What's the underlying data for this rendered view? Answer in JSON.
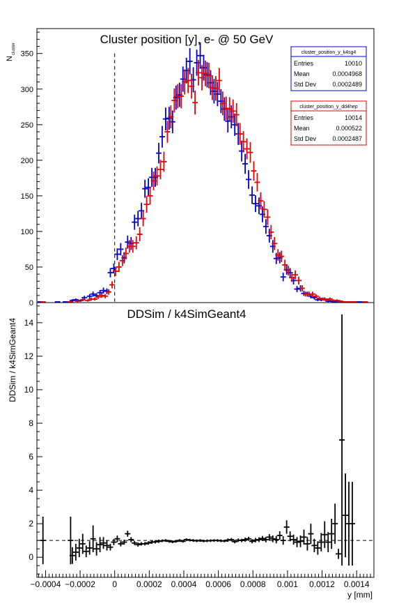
{
  "chart_data": [
    {
      "type": "scatter",
      "title": "Cluster position [y],  e- @ 50 GeV",
      "ylabel": "N",
      "ylabel_sub": "cluster",
      "xlim": [
        -0.00045,
        0.0015
      ],
      "ylim": [
        0,
        385
      ],
      "yticks": [
        0,
        50,
        100,
        150,
        200,
        250,
        300,
        350
      ],
      "reference_line_x": 0,
      "colors": {
        "k4sg4": "#0000cc",
        "dd4hep": "#e60000"
      },
      "stats_boxes": [
        {
          "name": "cluster_position_y_k4sg4",
          "rows": [
            {
              "label": "Entries",
              "value": "10010"
            },
            {
              "label": "Mean",
              "value": "0.0004968"
            },
            {
              "label": "Std Dev",
              "value": "0.0002489"
            }
          ]
        },
        {
          "name": "cluster_position_y_dd4hep",
          "rows": [
            {
              "label": "Entries",
              "value": "10014"
            },
            {
              "label": "Mean",
              "value": "0.000522"
            },
            {
              "label": "Std Dev",
              "value": "0.0002487"
            }
          ]
        }
      ],
      "series": [
        {
          "key": "k4sg4",
          "x": [
            -0.00043,
            -0.00033,
            -0.000285,
            -0.000245,
            -0.000225,
            -0.000195,
            -0.000175,
            -0.000145,
            -0.000125,
            -0.000105,
            -8.5e-05,
            -6.5e-05,
            -4.5e-05,
            -2.5e-05,
            -5e-06,
            1.5e-05,
            3.5e-05,
            5.5e-05,
            7.5e-05,
            9.5e-05,
            0.000115,
            0.000135,
            0.000155,
            0.000175,
            0.000195,
            0.000215,
            0.000235,
            0.000255,
            0.000275,
            0.000295,
            0.000315,
            0.000335,
            0.000355,
            0.000375,
            0.000395,
            0.000415,
            0.000435,
            0.000455,
            0.000475,
            0.000495,
            0.000515,
            0.000535,
            0.000555,
            0.000575,
            0.000595,
            0.000615,
            0.000635,
            0.000655,
            0.000675,
            0.000695,
            0.000715,
            0.000735,
            0.000755,
            0.000775,
            0.000795,
            0.000815,
            0.000835,
            0.000855,
            0.000875,
            0.000895,
            0.000915,
            0.000935,
            0.000955,
            0.000975,
            0.000995,
            0.001015,
            0.001035,
            0.001055,
            0.001075,
            0.001095,
            0.001115,
            0.001135,
            0.001155,
            0.001175,
            0.001195,
            0.001215,
            0.001235,
            0.001255,
            0.001275,
            0.001295,
            0.001315,
            0.001335,
            0.001355,
            0.001375,
            0.001395,
            0.00142
          ],
          "y": [
            1,
            1,
            1,
            3,
            4,
            3,
            7,
            9,
            12,
            10,
            14,
            17,
            16,
            42,
            48,
            68,
            75,
            63,
            85,
            83,
            113,
            118,
            129,
            160,
            162,
            176,
            176,
            210,
            233,
            258,
            259,
            254,
            288,
            292,
            314,
            326,
            339,
            313,
            337,
            347,
            330,
            320,
            309,
            297,
            293,
            283,
            272,
            255,
            261,
            250,
            237,
            213,
            195,
            173,
            151,
            139,
            136,
            124,
            107,
            94,
            79,
            62,
            63,
            36,
            46,
            42,
            31,
            19,
            20,
            13,
            12,
            9,
            7,
            4,
            4,
            5,
            2,
            2,
            1,
            2,
            1,
            1,
            1,
            1,
            1,
            1
          ]
        },
        {
          "key": "dd4hep",
          "x": [
            -0.000415,
            -0.000255,
            -0.000215,
            -0.000185,
            -0.000155,
            -0.000135,
            -0.000115,
            -9.5e-05,
            -7.5e-05,
            -5.5e-05,
            -3.5e-05,
            -1.5e-05,
            5e-06,
            2.5e-05,
            4.5e-05,
            6.5e-05,
            8.5e-05,
            0.000105,
            0.000125,
            0.000145,
            0.000165,
            0.000185,
            0.000205,
            0.000225,
            0.000245,
            0.000265,
            0.000285,
            0.000305,
            0.000325,
            0.000345,
            0.000365,
            0.000385,
            0.000405,
            0.000425,
            0.000445,
            0.000465,
            0.000485,
            0.000505,
            0.000525,
            0.000545,
            0.000565,
            0.000585,
            0.000605,
            0.000625,
            0.000645,
            0.000665,
            0.000685,
            0.000705,
            0.000725,
            0.000745,
            0.000765,
            0.000785,
            0.000805,
            0.000825,
            0.000845,
            0.000865,
            0.000885,
            0.000905,
            0.000925,
            0.000945,
            0.000965,
            0.000985,
            0.001005,
            0.001025,
            0.001045,
            0.001065,
            0.001085,
            0.001105,
            0.001125,
            0.001145,
            0.001165,
            0.001185,
            0.001205,
            0.001225,
            0.001245,
            0.001265,
            0.001285,
            0.001305,
            0.001325,
            0.001345,
            0.001365,
            0.001385,
            0.00145
          ],
          "y": [
            1,
            1,
            2,
            4,
            3,
            5,
            5,
            8,
            10,
            9,
            15,
            25,
            44,
            50,
            59,
            69,
            79,
            79,
            84,
            96,
            118,
            138,
            150,
            171,
            178,
            187,
            198,
            240,
            261,
            284,
            290,
            290,
            310,
            312,
            304,
            281,
            323,
            316,
            322,
            319,
            302,
            301,
            312,
            280,
            273,
            272,
            269,
            264,
            237,
            226,
            216,
            211,
            185,
            169,
            143,
            131,
            120,
            99,
            83,
            67,
            65,
            53,
            45,
            35,
            39,
            31,
            20,
            12,
            12,
            12,
            9,
            6,
            5,
            4,
            5,
            3,
            3,
            2,
            1,
            1,
            1,
            1,
            1
          ]
        }
      ]
    },
    {
      "type": "scatter",
      "title": "DDSim / k4SimGeant4",
      "xlabel": "y [mm]",
      "ylabel": "DDSim / k4SimGeant4",
      "xlim": [
        -0.00045,
        0.0015
      ],
      "ylim": [
        -1.2,
        15.2
      ],
      "xticks": [
        -0.0004,
        -0.0002,
        0,
        0.0002,
        0.0004,
        0.0006,
        0.0008,
        0.001,
        0.0012,
        0.0014
      ],
      "xtick_labels": [
        "−0.0004",
        "−0.0002",
        "0",
        "0.0002",
        "0.0004",
        "0.0006",
        "0.0008",
        "0.001",
        "0.0012",
        "0.0014"
      ],
      "yticks": [
        0,
        2,
        4,
        6,
        8,
        10,
        12,
        14
      ],
      "reference_line_y": 1,
      "series": [
        {
          "color": "#000000",
          "x": [
            -0.000415,
            -0.000255,
            -0.000245,
            -0.000225,
            -0.000205,
            -0.000185,
            -0.000165,
            -0.000145,
            -0.000125,
            -0.000105,
            -8.5e-05,
            -6.5e-05,
            -4.5e-05,
            -2.5e-05,
            -5e-06,
            1.5e-05,
            3.5e-05,
            5.5e-05,
            7.5e-05,
            9.5e-05,
            0.000115,
            0.000135,
            0.000155,
            0.000175,
            0.000195,
            0.000215,
            0.000235,
            0.000255,
            0.000275,
            0.000295,
            0.000315,
            0.000335,
            0.000355,
            0.000375,
            0.000395,
            0.000415,
            0.000435,
            0.000455,
            0.000475,
            0.000495,
            0.000515,
            0.000535,
            0.000555,
            0.000575,
            0.000595,
            0.000615,
            0.000635,
            0.000655,
            0.000675,
            0.000695,
            0.000715,
            0.000735,
            0.000755,
            0.000775,
            0.000795,
            0.000815,
            0.000835,
            0.000855,
            0.000875,
            0.000895,
            0.000915,
            0.000935,
            0.000955,
            0.000975,
            0.000995,
            0.001015,
            0.001035,
            0.001055,
            0.001075,
            0.001095,
            0.001115,
            0.001135,
            0.001155,
            0.001175,
            0.001195,
            0.001215,
            0.001235,
            0.001255,
            0.001275,
            0.001295,
            0.001315,
            0.001335,
            0.001355,
            0.001375
          ],
          "y": [
            1,
            1,
            0.1,
            0.3,
            0.55,
            0.8,
            0.35,
            0.55,
            1.1,
            0.5,
            0.75,
            0.85,
            0.7,
            0.6,
            0.9,
            1.1,
            0.8,
            0.9,
            1.4,
            1.05,
            0.85,
            0.75,
            0.8,
            0.8,
            0.85,
            0.9,
            0.92,
            0.95,
            0.98,
            1,
            0.95,
            0.92,
            0.95,
            1,
            0.95,
            1.05,
            1.02,
            1,
            0.98,
            1,
            0.97,
            0.98,
            0.99,
            1,
            1,
            0.98,
            0.97,
            1.02,
            1.05,
            0.93,
            1.02,
            1,
            1.05,
            1.1,
            0.95,
            1.02,
            1.05,
            1.12,
            1.05,
            1.2,
            1.1,
            1.05,
            1.3,
            1,
            1.8,
            1.25,
            1.05,
            0.9,
            0.95,
            1.2,
            0.8,
            1.4,
            0.7,
            0.55,
            0.9,
            1.35,
            0.9,
            1.4,
            2,
            0.2,
            7,
            2.5,
            2,
            2
          ],
          "yerr": [
            1.42,
            1.42,
            0.5,
            0.5,
            0.55,
            0.6,
            0.35,
            0.4,
            0.8,
            0.4,
            0.45,
            0.35,
            0.3,
            0.2,
            0.18,
            0.2,
            0.15,
            0.15,
            0.18,
            0.15,
            0.12,
            0.12,
            0.1,
            0.1,
            0.1,
            0.1,
            0.1,
            0.1,
            0.08,
            0.08,
            0.08,
            0.08,
            0.08,
            0.08,
            0.08,
            0.08,
            0.08,
            0.08,
            0.08,
            0.08,
            0.08,
            0.08,
            0.08,
            0.08,
            0.08,
            0.08,
            0.08,
            0.1,
            0.1,
            0.1,
            0.1,
            0.1,
            0.12,
            0.12,
            0.12,
            0.13,
            0.14,
            0.15,
            0.16,
            0.18,
            0.2,
            0.22,
            0.25,
            0.25,
            0.4,
            0.3,
            0.3,
            0.3,
            0.35,
            0.45,
            0.4,
            0.6,
            0.4,
            0.4,
            0.55,
            0.8,
            0.6,
            0.9,
            1.2,
            0.3,
            7.5,
            2.5,
            2.5,
            2.5
          ]
        }
      ]
    }
  ]
}
